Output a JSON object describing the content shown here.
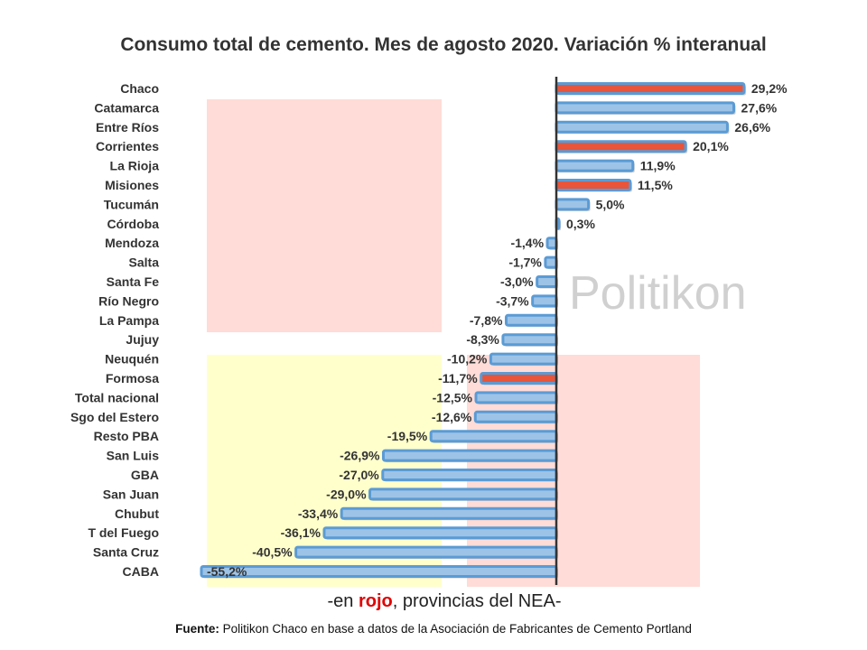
{
  "chart_data": {
    "type": "bar",
    "orientation": "horizontal",
    "title": "Consumo total de cemento. Mes de agosto 2020. Variación % interanual",
    "categories": [
      "Chaco",
      "Catamarca",
      "Entre Ríos",
      "Corrientes",
      "La Rioja",
      "Misiones",
      "Tucumán",
      "Córdoba",
      "Mendoza",
      "Salta",
      "Santa Fe",
      "Río Negro",
      "La Pampa",
      "Jujuy",
      "Neuquén",
      "Formosa",
      "Total nacional",
      "Sgo del Estero",
      "Resto PBA",
      "San Luis",
      "GBA",
      "San Juan",
      "Chubut",
      "T del Fuego",
      "Santa Cruz",
      "CABA"
    ],
    "values": [
      29.2,
      27.6,
      26.6,
      20.1,
      11.9,
      11.5,
      5.0,
      0.3,
      -1.4,
      -1.7,
      -3.0,
      -3.7,
      -7.8,
      -8.3,
      -10.2,
      -11.7,
      -12.5,
      -12.6,
      -19.5,
      -26.9,
      -27.0,
      -29.0,
      -33.4,
      -36.1,
      -40.5,
      -55.2
    ],
    "labels": [
      "29,2%",
      "27,6%",
      "26,6%",
      "20,1%",
      "11,9%",
      "11,5%",
      "5,0%",
      "0,3%",
      "-1,4%",
      "-1,7%",
      "-3,0%",
      "-3,7%",
      "-7,8%",
      "-8,3%",
      "-10,2%",
      "-11,7%",
      "-12,5%",
      "-12,6%",
      "-19,5%",
      "-26,9%",
      "-27,0%",
      "-29,0%",
      "-33,4%",
      "-36,1%",
      "-40,5%",
      "-55,2%"
    ],
    "highlight_nea": [
      "Chaco",
      "Corrientes",
      "Misiones",
      "Formosa"
    ],
    "colors": {
      "default_fill": "#9dc3e6",
      "default_border": "#5b9bd5",
      "nea_fill": "#e8553a",
      "axis": "#333333"
    },
    "xlim": [
      -55.2,
      29.2
    ],
    "xlabel": "",
    "ylabel": ""
  },
  "watermark": "Politikon",
  "note": {
    "prefix": "-en ",
    "highlight": "rojo",
    "suffix": ", provincias del NEA-"
  },
  "source": {
    "label": "Fuente:",
    "text": " Politikon Chaco en base a datos de la Asociación de Fabricantes de Cemento Portland"
  }
}
